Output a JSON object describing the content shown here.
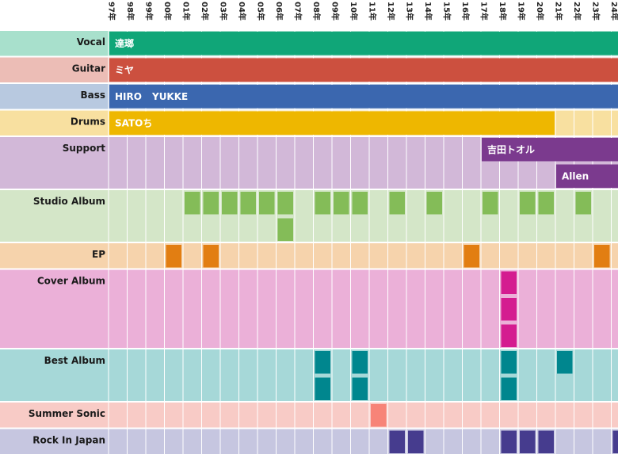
{
  "chart_data": {
    "type": "timeline",
    "years": [
      "97年",
      "98年",
      "99年",
      "00年",
      "01年",
      "02年",
      "03年",
      "04年",
      "05年",
      "06年",
      "07年",
      "08年",
      "09年",
      "10年",
      "11年",
      "12年",
      "13年",
      "14年",
      "15年",
      "16年",
      "17年",
      "18年",
      "19年",
      "20年",
      "21年",
      "22年",
      "23年",
      "24年"
    ],
    "rows": [
      {
        "key": "vocal",
        "label": "Vocal",
        "bg": "#a8e0cc",
        "lanes": 1
      },
      {
        "key": "guitar",
        "label": "Guitar",
        "bg": "#ecbdb6",
        "lanes": 1
      },
      {
        "key": "bass",
        "label": "Bass",
        "bg": "#b8c9e0",
        "lanes": 1
      },
      {
        "key": "drums",
        "label": "Drums",
        "bg": "#f8e0a0",
        "lanes": 1
      },
      {
        "key": "support",
        "label": "Support",
        "bg": "#d2b8d8",
        "lanes": 2
      },
      {
        "key": "studio",
        "label": "Studio Album",
        "bg": "#d4e6c8",
        "lanes": 2
      },
      {
        "key": "ep",
        "label": "EP",
        "bg": "#f6d3ac",
        "lanes": 1
      },
      {
        "key": "cover",
        "label": "Cover Album",
        "bg": "#ebb0d8",
        "lanes": 3
      },
      {
        "key": "best",
        "label": "Best Album",
        "bg": "#a6d8d8",
        "lanes": 2
      },
      {
        "key": "summer",
        "label": "Summer Sonic",
        "bg": "#f8cbc6",
        "lanes": 1
      },
      {
        "key": "rij",
        "label": "Rock In Japan",
        "bg": "#c6c6e0",
        "lanes": 1
      }
    ],
    "members": [
      {
        "row": "vocal",
        "name": "達瑯",
        "start": 1997,
        "end": 2024,
        "lane": 0,
        "color": "#10a678"
      },
      {
        "row": "guitar",
        "name": "ミヤ",
        "start": 1997,
        "end": 2024,
        "lane": 0,
        "color": "#cc503f"
      },
      {
        "row": "bass",
        "name": "HIRO",
        "start": 1997,
        "end": 1999,
        "lane": 0,
        "color": "#3b67af"
      },
      {
        "row": "bass",
        "name": "YUKKE",
        "start": 1999,
        "end": 2024,
        "lane": 0,
        "color": "#3b67af"
      },
      {
        "row": "drums",
        "name": "SATOち",
        "start": 1997,
        "end": 2020,
        "lane": 0,
        "color": "#eeb700"
      },
      {
        "row": "support",
        "name": "吉田トオル",
        "start": 2017,
        "end": 2024,
        "lane": 0,
        "color": "#7b3a8e"
      },
      {
        "row": "support",
        "name": "Allen",
        "start": 2021,
        "end": 2024,
        "lane": 1,
        "color": "#7b3a8e"
      }
    ],
    "releases": [
      {
        "row": "studio",
        "color": "#84bc58",
        "items": [
          [
            2001,
            0
          ],
          [
            2002,
            0
          ],
          [
            2003,
            0
          ],
          [
            2004,
            0
          ],
          [
            2005,
            0
          ],
          [
            2006,
            0
          ],
          [
            2006,
            1
          ],
          [
            2008,
            0
          ],
          [
            2009,
            0
          ],
          [
            2010,
            0
          ],
          [
            2012,
            0
          ],
          [
            2014,
            0
          ],
          [
            2017,
            0
          ],
          [
            2019,
            0
          ],
          [
            2020,
            0
          ],
          [
            2022,
            0
          ]
        ]
      },
      {
        "row": "ep",
        "color": "#e27e12",
        "items": [
          [
            2000,
            0
          ],
          [
            2002,
            0
          ],
          [
            2016,
            0
          ],
          [
            2023,
            0
          ]
        ]
      },
      {
        "row": "cover",
        "color": "#d41c90",
        "items": [
          [
            2018,
            0
          ],
          [
            2018,
            1
          ],
          [
            2018,
            2
          ]
        ]
      },
      {
        "row": "best",
        "color": "#00868e",
        "items": [
          [
            2008,
            0
          ],
          [
            2008,
            1
          ],
          [
            2010,
            0
          ],
          [
            2010,
            1
          ],
          [
            2018,
            0
          ],
          [
            2018,
            1
          ],
          [
            2021,
            0
          ]
        ]
      },
      {
        "row": "summer",
        "color": "#f78478",
        "items": [
          [
            2011,
            0
          ]
        ]
      },
      {
        "row": "rij",
        "color": "#463c8e",
        "items": [
          [
            2012,
            0
          ],
          [
            2013,
            0
          ],
          [
            2018,
            0
          ],
          [
            2019,
            0
          ],
          [
            2020,
            0
          ],
          [
            2024,
            0
          ]
        ]
      }
    ]
  }
}
